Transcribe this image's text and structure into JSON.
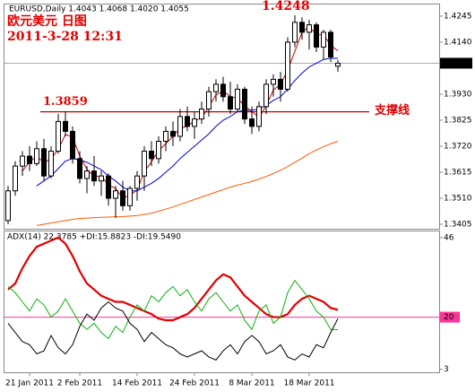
{
  "chart_data": [
    {
      "type": "candlestick",
      "title": "EURUSD,Daily  1.4043 1.4068 1.4020 1.4055",
      "subtitle": "欧元美元 日图",
      "timestamp": "2011-3-28 12:31",
      "categories": [
        null,
        null,
        null,
        "21 Jan 2011",
        null,
        null,
        null,
        null,
        null,
        null,
        "2 Feb 2011",
        null,
        null,
        null,
        null,
        null,
        null,
        null,
        "14 Feb 2011",
        null,
        null,
        null,
        null,
        null,
        null,
        null,
        "24 Feb 2011",
        null,
        null,
        null,
        null,
        null,
        null,
        null,
        "8 Mar 2011",
        null,
        null,
        null,
        null,
        null,
        null,
        null,
        "18 Mar 2011",
        null,
        null,
        null,
        null
      ],
      "open": [
        1.342,
        1.354,
        1.364,
        1.368,
        1.365,
        1.371,
        1.36,
        1.37,
        1.382,
        1.378,
        1.367,
        1.359,
        1.362,
        1.358,
        1.36,
        1.351,
        1.354,
        1.348,
        1.355,
        1.36,
        1.37,
        1.367,
        1.374,
        1.378,
        1.376,
        1.384,
        1.38,
        1.383,
        1.387,
        1.394,
        1.397,
        1.392,
        1.387,
        1.395,
        1.383,
        1.38,
        1.388,
        1.397,
        1.399,
        1.395,
        1.414,
        1.422,
        1.418,
        1.421,
        1.412,
        1.418,
        1.4043
      ],
      "high": [
        1.356,
        1.366,
        1.37,
        1.372,
        1.374,
        1.375,
        1.372,
        1.385,
        1.386,
        1.38,
        1.37,
        1.364,
        1.368,
        1.362,
        1.361,
        1.356,
        1.358,
        1.356,
        1.362,
        1.372,
        1.374,
        1.376,
        1.38,
        1.382,
        1.387,
        1.388,
        1.386,
        1.39,
        1.396,
        1.399,
        1.4,
        1.398,
        1.397,
        1.396,
        1.388,
        1.39,
        1.399,
        1.401,
        1.402,
        1.416,
        1.4248,
        1.424,
        1.423,
        1.422,
        1.419,
        1.419,
        1.4068
      ],
      "low": [
        1.3405,
        1.352,
        1.36,
        1.362,
        1.364,
        1.358,
        1.359,
        1.369,
        1.376,
        1.365,
        1.357,
        1.353,
        1.356,
        1.352,
        1.348,
        1.343,
        1.346,
        1.346,
        1.35,
        1.354,
        1.364,
        1.365,
        1.37,
        1.372,
        1.374,
        1.378,
        1.375,
        1.381,
        1.384,
        1.39,
        1.39,
        1.385,
        1.386,
        1.381,
        1.377,
        1.378,
        1.385,
        1.392,
        1.39,
        1.394,
        1.412,
        1.415,
        1.411,
        1.41,
        1.407,
        1.406,
        1.402
      ],
      "close": [
        1.354,
        1.364,
        1.368,
        1.365,
        1.371,
        1.36,
        1.37,
        1.382,
        1.378,
        1.367,
        1.359,
        1.362,
        1.358,
        1.36,
        1.351,
        1.354,
        1.348,
        1.355,
        1.36,
        1.37,
        1.367,
        1.374,
        1.378,
        1.376,
        1.384,
        1.38,
        1.383,
        1.387,
        1.394,
        1.397,
        1.392,
        1.387,
        1.395,
        1.383,
        1.38,
        1.388,
        1.397,
        1.399,
        1.395,
        1.414,
        1.422,
        1.418,
        1.421,
        1.412,
        1.418,
        1.408,
        1.4055
      ],
      "series": [
        {
          "color": "#cc0000",
          "values": [
            null,
            null,
            1.362,
            1.3657,
            1.368,
            1.3653,
            1.367,
            1.3707,
            1.3767,
            1.3757,
            1.368,
            1.3627,
            1.3597,
            1.36,
            1.3563,
            1.355,
            1.351,
            1.3523,
            1.3543,
            1.3617,
            1.3657,
            1.3703,
            1.373,
            1.376,
            1.3793,
            1.38,
            1.3823,
            1.3833,
            1.388,
            1.3927,
            1.3943,
            1.392,
            1.3913,
            1.3883,
            1.386,
            1.3837,
            1.3883,
            1.3947,
            1.397,
            1.4027,
            1.4103,
            1.418,
            1.4203,
            1.417,
            1.417,
            1.4127,
            1.4105
          ]
        },
        {
          "color": "#0000cc",
          "values": [
            null,
            null,
            null,
            null,
            1.356,
            1.358,
            1.36,
            1.363,
            1.366,
            1.367,
            1.3665,
            1.3655,
            1.364,
            1.3625,
            1.36,
            1.358,
            1.3555,
            1.354,
            1.354,
            1.3555,
            1.357,
            1.359,
            1.3615,
            1.364,
            1.367,
            1.3695,
            1.372,
            1.3745,
            1.377,
            1.38,
            1.3825,
            1.384,
            1.386,
            1.3865,
            1.3865,
            1.387,
            1.3885,
            1.3905,
            1.392,
            1.395,
            1.3985,
            1.4015,
            1.404,
            1.4055,
            1.407,
            1.4075,
            1.4075
          ]
        },
        {
          "color": "#ff5a00",
          "values": [
            null,
            null,
            null,
            null,
            1.34,
            1.3405,
            1.341,
            1.3415,
            1.342,
            1.3425,
            1.3428,
            1.343,
            1.3432,
            1.3433,
            1.3434,
            1.3435,
            1.3436,
            1.3438,
            1.344,
            1.3445,
            1.345,
            1.3458,
            1.3466,
            1.3475,
            1.3485,
            1.3495,
            1.3505,
            1.3515,
            1.3525,
            1.3535,
            1.3545,
            1.3555,
            1.3563,
            1.357,
            1.3578,
            1.3587,
            1.3598,
            1.361,
            1.3623,
            1.3638,
            1.3655,
            1.3672,
            1.369,
            1.3705,
            1.3718,
            1.373,
            1.374
          ]
        }
      ],
      "ylim": [
        1.3387,
        1.4292
      ],
      "yticks": [
        1.4245,
        {
          "value": 1.414,
          "label": "1.4140"
        },
        {
          "value": 1.393,
          "label": "1.3930"
        },
        1.3825,
        {
          "value": 1.372,
          "label": "1.3720"
        },
        1.3615,
        {
          "value": 1.351,
          "label": "1.3510"
        },
        1.3405
      ],
      "current_price": 1.4055,
      "peak": 1.4248,
      "support": {
        "value": 1.3859,
        "label": "支撑线"
      }
    },
    {
      "type": "line",
      "title": "ADX(14) 22.3785 +DI:15.8823 -DI:19.5490",
      "series": [
        {
          "color": "#e00000",
          "values": [
            29,
            31,
            36,
            40,
            43,
            44,
            45,
            46,
            44,
            40,
            35,
            31,
            29,
            27,
            26,
            25,
            25,
            24,
            23,
            22,
            21,
            19.5,
            19,
            19,
            20,
            21,
            23,
            26,
            29,
            32,
            34,
            33,
            30,
            27,
            25,
            23,
            21,
            20,
            20,
            21,
            24,
            26,
            27,
            26,
            25,
            23,
            22.4
          ]
        },
        {
          "color": "#10b010",
          "values": [
            30,
            28,
            25,
            22,
            26,
            24,
            20,
            22,
            26,
            22,
            18,
            16,
            18,
            15,
            13,
            17,
            15,
            20,
            24,
            22,
            27,
            25,
            28,
            30,
            27,
            29,
            25,
            22,
            26,
            28,
            25,
            22,
            24,
            19,
            16,
            22,
            24,
            18,
            20,
            28,
            32,
            29,
            26,
            22,
            20,
            16,
            15.9
          ]
        },
        {
          "color": "#000000",
          "values": [
            18,
            15,
            12,
            11,
            8,
            9,
            14,
            10,
            8,
            11,
            17,
            21,
            19,
            23,
            25,
            23,
            22,
            18,
            16,
            12,
            15,
            13,
            11,
            10,
            8,
            7,
            8,
            9,
            7,
            6,
            9,
            11,
            8,
            12,
            14,
            12,
            8,
            9,
            11,
            7,
            6,
            8,
            7,
            11,
            10,
            15,
            19.5
          ]
        }
      ],
      "ylim": [
        2,
        48
      ],
      "yticks": [
        46,
        20,
        3
      ],
      "level": 20
    }
  ]
}
